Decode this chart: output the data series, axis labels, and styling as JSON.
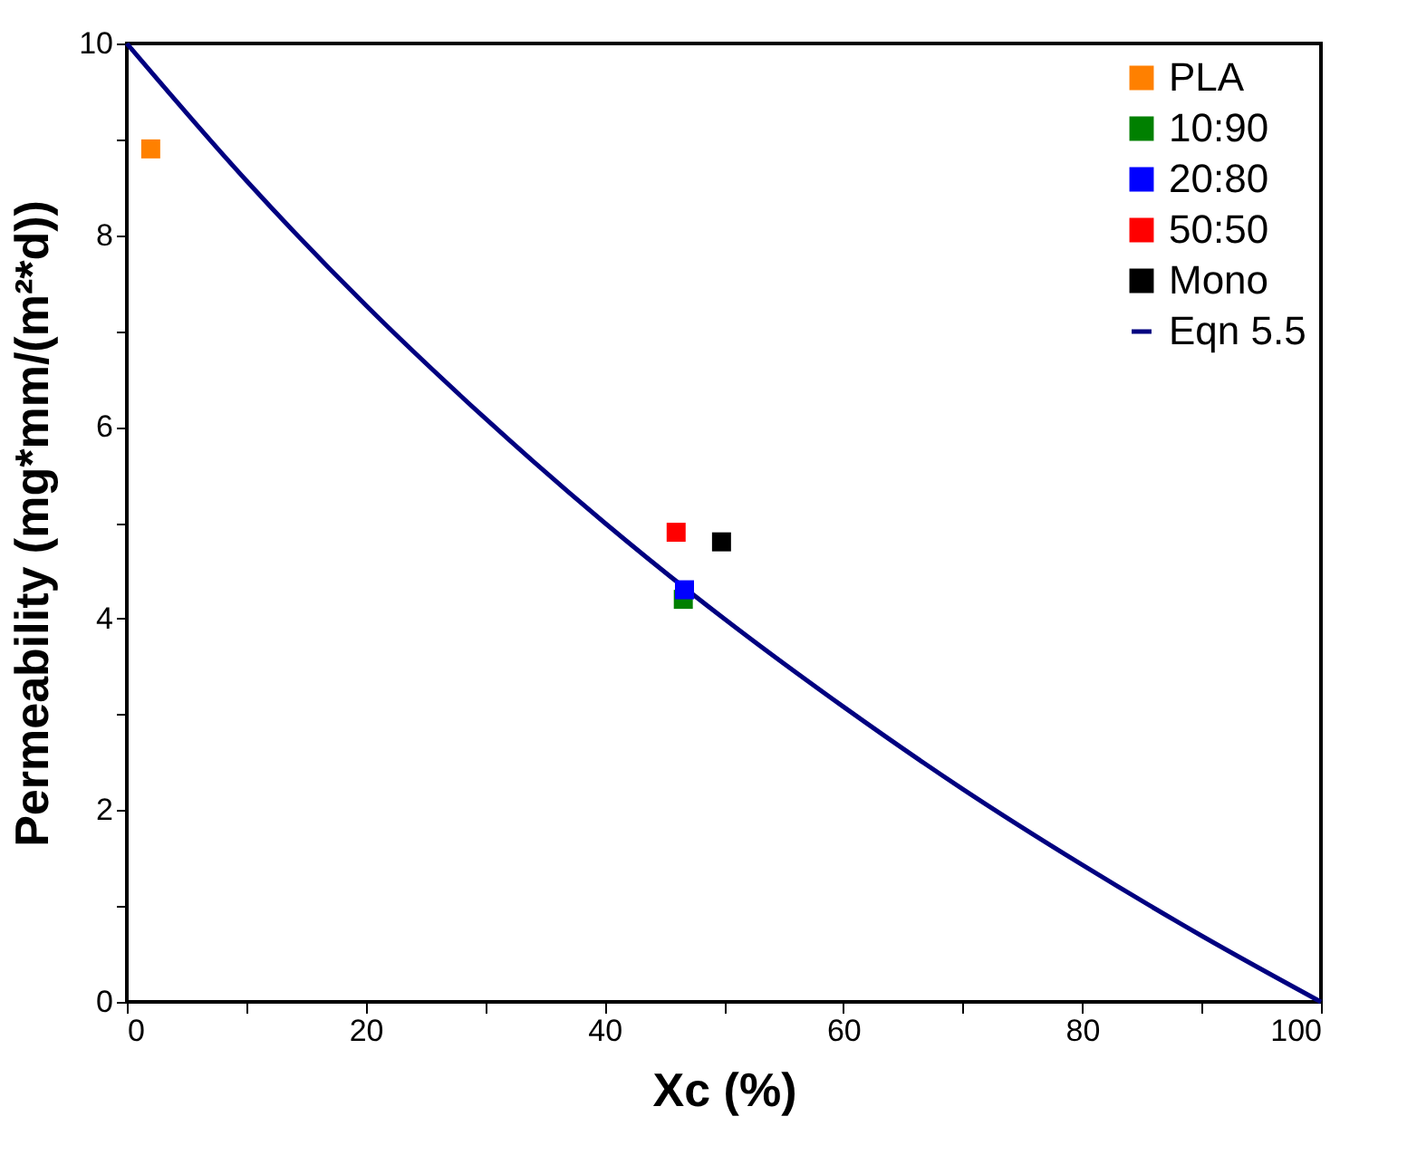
{
  "chart_data": {
    "type": "scatter",
    "xlabel": "Xc (%)",
    "ylabel": "Permeability (mg*mm/(m²*d))",
    "xlim": [
      0,
      100
    ],
    "ylim": [
      0,
      10
    ],
    "xticks": [
      0,
      {
        "value": 10,
        "label": null
      },
      20,
      {
        "value": 30,
        "label": null
      },
      40,
      {
        "value": 50,
        "label": null
      },
      60,
      {
        "value": 70,
        "label": null
      },
      80,
      {
        "value": 90,
        "label": null
      },
      100
    ],
    "yticks": [
      0,
      {
        "value": 1,
        "label": null
      },
      2,
      {
        "value": 3,
        "label": null
      },
      4,
      {
        "value": 5,
        "label": null
      },
      6,
      {
        "value": 7,
        "label": null
      },
      8,
      {
        "value": 9,
        "label": null
      },
      10
    ],
    "grid": false,
    "legend": "top right",
    "marker": "square",
    "series": [
      {
        "name": "PLA",
        "color": "#ff8000",
        "x": [
          2.0
        ],
        "values": [
          8.9
        ]
      },
      {
        "name": "10:90",
        "color": "#008000",
        "x": [
          46.6
        ],
        "values": [
          4.2
        ]
      },
      {
        "name": "20:80",
        "color": "#0000ff",
        "x": [
          46.7
        ],
        "values": [
          4.3
        ]
      },
      {
        "name": "50:50",
        "color": "#ff0000",
        "x": [
          46.0
        ],
        "values": [
          4.9
        ]
      },
      {
        "name": "Mono",
        "color": "#000000",
        "x": [
          49.8
        ],
        "values": [
          4.8
        ]
      },
      {
        "name": "Eqn 5.5",
        "type": "line",
        "color": "#000080",
        "line_style": "solid",
        "marker": "none",
        "x": [
          0,
          10,
          20,
          30,
          40,
          50,
          60,
          70,
          80,
          90,
          100
        ],
        "values": [
          10,
          8.57,
          7.27,
          6.09,
          5.0,
          4.0,
          3.08,
          2.22,
          1.43,
          0.69,
          0
        ]
      }
    ]
  }
}
